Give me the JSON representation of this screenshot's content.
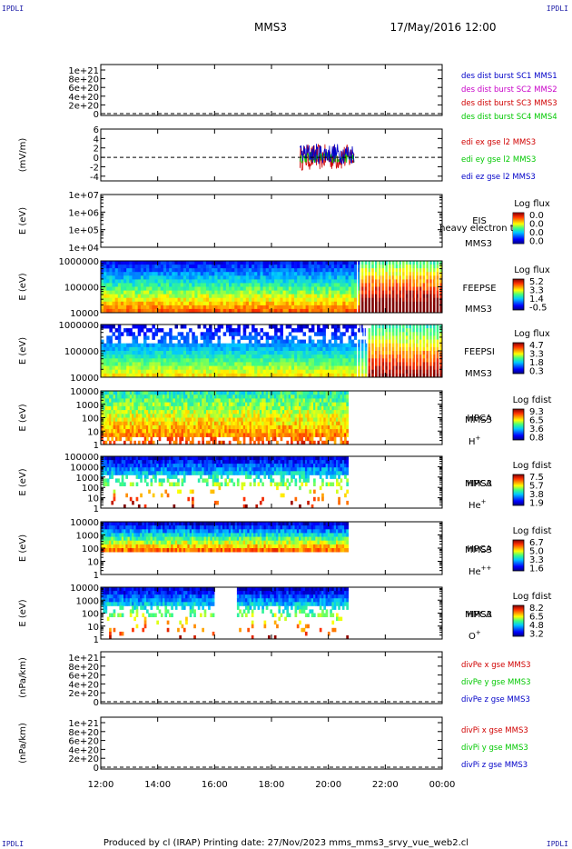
{
  "header": {
    "corner_left": "IPDLI",
    "corner_right": "IPDLI",
    "spacecraft": "MMS3",
    "datetime": "17/May/2016 12:00"
  },
  "footer": {
    "corner_left": "IPDLI",
    "corner_right": "IPDLI",
    "text": "Produced by cl (IRAP)   Printing date: 27/Nov/2023   mms_mms3_srvy_vue_web2.cl"
  },
  "colors": {
    "blue": "#0000c8",
    "green": "#00c800",
    "red": "#d00000",
    "magenta": "#c800c8"
  },
  "chart_data": {
    "type": "heatmap",
    "x_ticks": [
      "12:00",
      "14:00",
      "16:00",
      "18:00",
      "20:00",
      "22:00",
      "00:00"
    ],
    "xlim_hours": [
      12,
      24
    ],
    "panels": [
      {
        "id": "dist-burst",
        "type": "line",
        "ylabel": "",
        "yticks": [
          "1e+21",
          "8e+20",
          "6e+20",
          "4e+20",
          "2e+20",
          "0"
        ],
        "legend": [
          {
            "text": "des dist burst SC1 MMS1",
            "color": "#0000c8"
          },
          {
            "text": "des dist burst SC2 MMS2",
            "color": "#c800c8"
          },
          {
            "text": "des dist burst SC3 MMS3",
            "color": "#d00000"
          },
          {
            "text": "des dist burst SC4 MMS4",
            "color": "#00c800"
          }
        ],
        "zero_line": true
      },
      {
        "id": "edi-e",
        "type": "line",
        "ylabel": "(mV/m)",
        "yticks": [
          "6",
          "4",
          "2",
          "0",
          "-2",
          "-4"
        ],
        "ylim": [
          -5,
          6
        ],
        "legend": [
          {
            "text": "edi ex gse l2 MMS3",
            "color": "#d00000"
          },
          {
            "text": "edi ey gse l2 MMS3",
            "color": "#00c800"
          },
          {
            "text": "edi ez gse l2 MMS3",
            "color": "#0000c8"
          }
        ],
        "data_range_hours": [
          19.0,
          20.9
        ],
        "zero_line": true
      },
      {
        "id": "eis",
        "type": "heatmap",
        "ylabel": "E (eV)",
        "yticks": [
          "1e+07",
          "1e+06",
          "1e+05",
          "1e+04"
        ],
        "label": [
          "EIS",
          "MMS3"
        ],
        "overlay_label": "heavy electron to",
        "colorbar_title": "Log flux",
        "colorbar_ticks": [
          "0.0",
          "0.0",
          "0.0",
          "0.0"
        ],
        "empty": true
      },
      {
        "id": "feeps-e",
        "type": "heatmap",
        "ylabel": "E (eV)",
        "yticks": [
          "1000000",
          "100000",
          "10000"
        ],
        "label": [
          "FEEPSE",
          "MMS3"
        ],
        "colorbar_title": "Log flux",
        "colorbar_ticks": [
          "5.2",
          "3.3",
          "1.4",
          "-0.5"
        ],
        "data_range_hours": [
          12,
          24
        ]
      },
      {
        "id": "feeps-i",
        "type": "heatmap",
        "ylabel": "E (eV)",
        "yticks": [
          "1000000",
          "100000",
          "10000"
        ],
        "label": [
          "FEEPSI",
          "MMS3"
        ],
        "colorbar_title": "Log flux",
        "colorbar_ticks": [
          "4.7",
          "3.3",
          "1.8",
          "0.3"
        ],
        "data_range_hours": [
          12,
          24
        ]
      },
      {
        "id": "hpca-h",
        "type": "heatmap",
        "ylabel": "E (eV)",
        "yticks": [
          "10000",
          "1000",
          "100",
          "10",
          "1"
        ],
        "label": [
          "HPCA",
          "MMS3"
        ],
        "species": "H",
        "charge": "+",
        "colorbar_title": "Log fdist",
        "colorbar_ticks": [
          "9.3",
          "6.5",
          "3.6",
          "0.8"
        ],
        "data_range_hours": [
          12,
          20.7
        ]
      },
      {
        "id": "hpca-he",
        "type": "heatmap",
        "ylabel": "E (eV)",
        "yticks": [
          "100000",
          "10000",
          "1000",
          "100",
          "10",
          "1"
        ],
        "label": [
          "HPCA",
          "MMS3"
        ],
        "species": "He",
        "charge": "+",
        "colorbar_title": "Log fdist",
        "colorbar_ticks": [
          "7.5",
          "5.7",
          "3.8",
          "1.9"
        ],
        "data_range_hours": [
          12,
          20.7
        ]
      },
      {
        "id": "hpca-he2",
        "type": "heatmap",
        "ylabel": "E (eV)",
        "yticks": [
          "10000",
          "1000",
          "100",
          "10",
          "1"
        ],
        "label": [
          "HPCA",
          "MMS3"
        ],
        "species": "He",
        "charge": "++",
        "colorbar_title": "Log fdist",
        "colorbar_ticks": [
          "6.7",
          "5.0",
          "3.3",
          "1.6"
        ],
        "data_range_hours": [
          12,
          20.7
        ]
      },
      {
        "id": "hpca-o",
        "type": "heatmap",
        "ylabel": "E (eV)",
        "yticks": [
          "10000",
          "1000",
          "100",
          "10",
          "1"
        ],
        "label": [
          "HPCA",
          "MMS3"
        ],
        "species": "O",
        "charge": "+",
        "colorbar_title": "Log fdist",
        "colorbar_ticks": [
          "8.2",
          "6.5",
          "4.8",
          "3.2"
        ],
        "data_range_hours": [
          12,
          20.7
        ]
      },
      {
        "id": "divpe",
        "type": "line",
        "ylabel": "(nPa/km)",
        "yticks": [
          "1e+21",
          "8e+20",
          "6e+20",
          "4e+20",
          "2e+20",
          "0"
        ],
        "legend": [
          {
            "text": "divPe x gse MMS3",
            "color": "#d00000"
          },
          {
            "text": "divPe y gse MMS3",
            "color": "#00c800"
          },
          {
            "text": "divPe z gse MMS3",
            "color": "#0000c8"
          }
        ],
        "zero_line": true
      },
      {
        "id": "divpi",
        "type": "line",
        "ylabel": "(nPa/km)",
        "yticks": [
          "1e+21",
          "8e+20",
          "6e+20",
          "4e+20",
          "2e+20",
          "0"
        ],
        "legend": [
          {
            "text": "divPi x gse MMS3",
            "color": "#d00000"
          },
          {
            "text": "divPi y gse MMS3",
            "color": "#00c800"
          },
          {
            "text": "divPi z gse MMS3",
            "color": "#0000c8"
          }
        ],
        "zero_line": true
      }
    ]
  }
}
